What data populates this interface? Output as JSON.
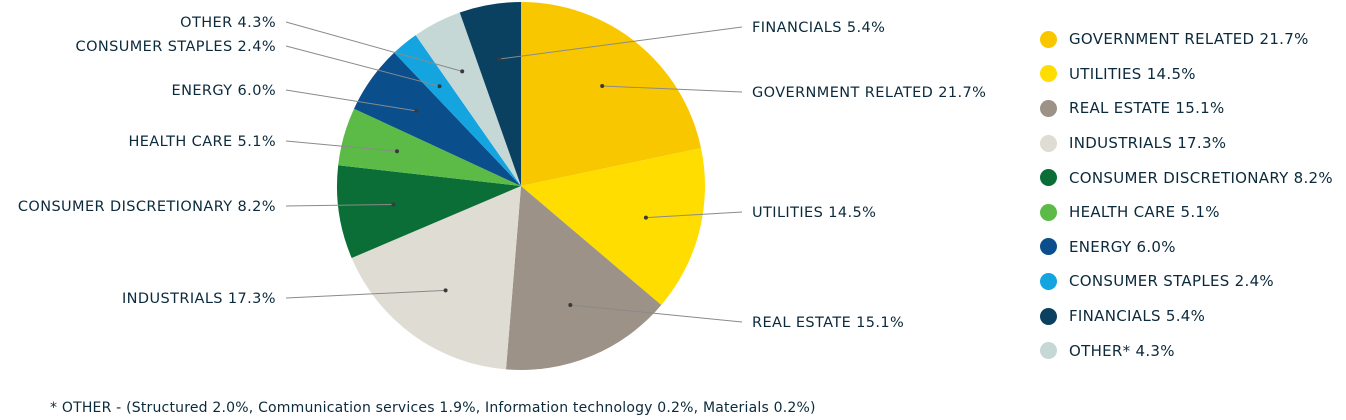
{
  "chart_data": {
    "type": "pie",
    "slices": [
      {
        "label": "GOVERNMENT RELATED 21.7%",
        "value": 21.7,
        "color": "#f9c700"
      },
      {
        "label": "UTILITIES 14.5%",
        "value": 14.5,
        "color": "#ffdd00"
      },
      {
        "label": "REAL ESTATE 15.1%",
        "value": 15.1,
        "color": "#9c9288"
      },
      {
        "label": "INDUSTRIALS 17.3%",
        "value": 17.3,
        "color": "#dfdcd3"
      },
      {
        "label": "CONSUMER DISCRETIONARY 8.2%",
        "value": 8.2,
        "color": "#0b6e36"
      },
      {
        "label": "HEALTH CARE 5.1%",
        "value": 5.1,
        "color": "#5bbb46"
      },
      {
        "label": "ENERGY 6.0%",
        "value": 6.0,
        "color": "#0a4e8c"
      },
      {
        "label": "CONSUMER STAPLES 2.4%",
        "value": 2.4,
        "color": "#14a4e0"
      },
      {
        "label": "OTHER 4.3%",
        "value": 4.3,
        "color": "#c5d8d5"
      },
      {
        "label": "FINANCIALS 5.4%",
        "value": 5.4,
        "color": "#0a4161"
      }
    ],
    "legend": [
      {
        "label": "GOVERNMENT RELATED 21.7%",
        "color": "#f9c700"
      },
      {
        "label": "UTILITIES 14.5%",
        "color": "#ffdd00"
      },
      {
        "label": "REAL ESTATE 15.1%",
        "color": "#9c9288"
      },
      {
        "label": "INDUSTRIALS 17.3%",
        "color": "#dfdcd3"
      },
      {
        "label": "CONSUMER DISCRETIONARY 8.2%",
        "color": "#0b6e36"
      },
      {
        "label": "HEALTH CARE 5.1%",
        "color": "#5bbb46"
      },
      {
        "label": "ENERGY 6.0%",
        "color": "#0a4e8c"
      },
      {
        "label": "CONSUMER STAPLES 2.4%",
        "color": "#14a4e0"
      },
      {
        "label": "FINANCIALS 5.4%",
        "color": "#0a4161"
      },
      {
        "label": "OTHER* 4.3%",
        "color": "#c5d8d5"
      }
    ],
    "legend_position": "right",
    "footnote": "* OTHER - (Structured 2.0%, Communication services 1.9%, Information technology 0.2%, Materials 0.2%)"
  }
}
